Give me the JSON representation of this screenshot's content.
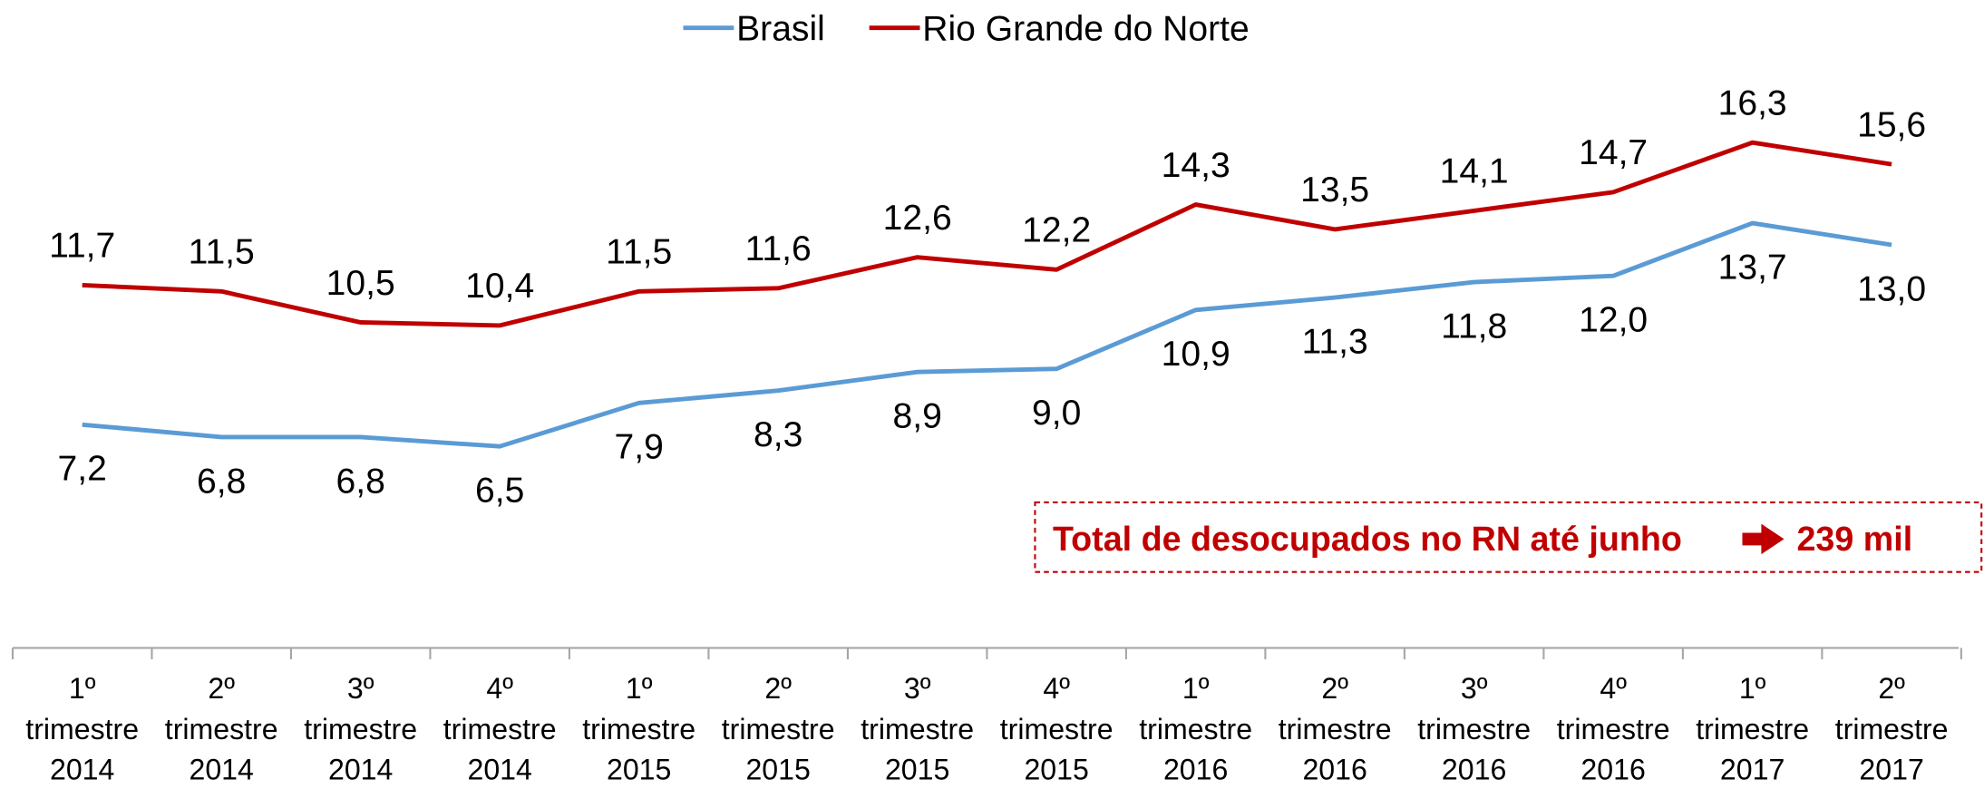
{
  "chart_data": {
    "type": "line",
    "categories": [
      "1º trimestre 2014",
      "2º trimestre 2014",
      "3º trimestre 2014",
      "4º trimestre 2014",
      "1º trimestre 2015",
      "2º trimestre 2015",
      "3º trimestre 2015",
      "4º trimestre 2015",
      "1º trimestre 2016",
      "2º trimestre 2016",
      "3º trimestre 2016",
      "4º trimestre 2016",
      "1º trimestre 2017",
      "2º trimestre 2017"
    ],
    "series": [
      {
        "name": "Brasil",
        "color": "#5b9bd5",
        "values": [
          7.2,
          6.8,
          6.8,
          6.5,
          7.9,
          8.3,
          8.9,
          9.0,
          10.9,
          11.3,
          11.8,
          12.0,
          13.7,
          13.0
        ],
        "value_labels": [
          "7,2",
          "6,8",
          "6,8",
          "6,5",
          "7,9",
          "8,3",
          "8,9",
          "9,0",
          "10,9",
          "11,3",
          "11,8",
          "12,0",
          "13,7",
          "13,0"
        ]
      },
      {
        "name": "Rio Grande do Norte",
        "color": "#c00000",
        "values": [
          11.7,
          11.5,
          10.5,
          10.4,
          11.5,
          11.6,
          12.6,
          12.2,
          14.3,
          13.5,
          14.1,
          14.7,
          16.3,
          15.6
        ],
        "value_labels": [
          "11,7",
          "11,5",
          "10,5",
          "10,4",
          "11,5",
          "11,6",
          "12,6",
          "12,2",
          "14,3",
          "13,5",
          "14,1",
          "14,7",
          "16,3",
          "15,6"
        ]
      }
    ],
    "legend": "top",
    "annotation": {
      "text": "Total de desocupados no RN até junho",
      "value": "239 mil"
    }
  }
}
